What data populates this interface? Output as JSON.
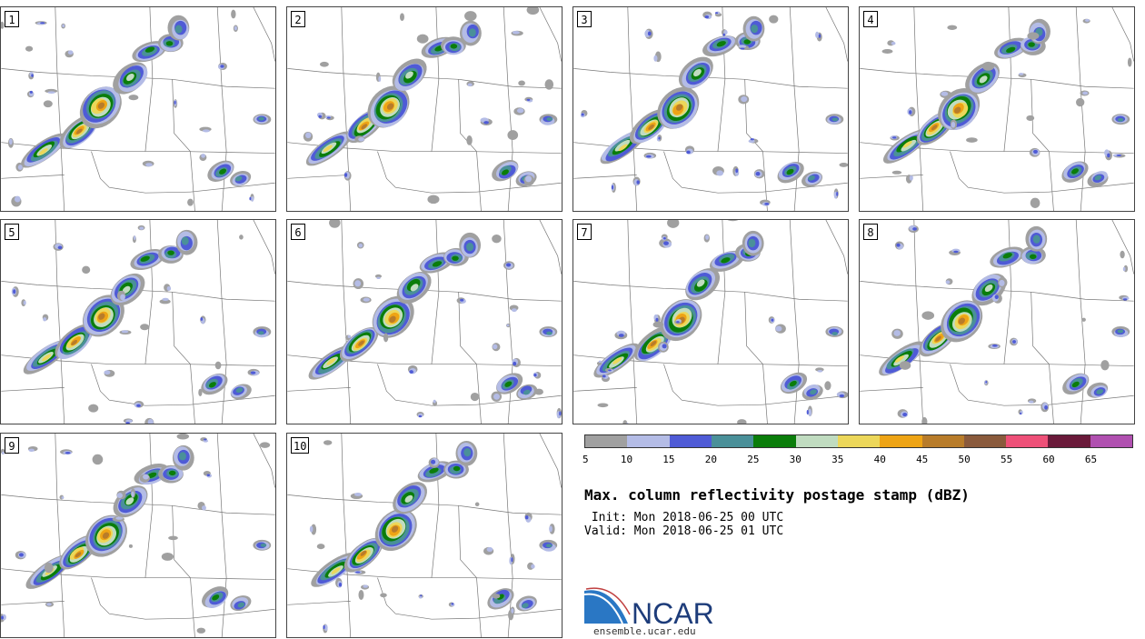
{
  "panels": [
    {
      "label": "1"
    },
    {
      "label": "2"
    },
    {
      "label": "3"
    },
    {
      "label": "4"
    },
    {
      "label": "5"
    },
    {
      "label": "6"
    },
    {
      "label": "7"
    },
    {
      "label": "8"
    },
    {
      "label": "9"
    },
    {
      "label": "10"
    }
  ],
  "colorbar": {
    "colors": [
      "#a0a0a0",
      "#b4bce6",
      "#4f5bd6",
      "#4a9099",
      "#0a7d0a",
      "#c0dcc0",
      "#ecd75a",
      "#eea415",
      "#b87c2a",
      "#8a5a3c",
      "#ee5078",
      "#6a1a3a",
      "#b050b0"
    ],
    "ticks": [
      "5",
      "10",
      "15",
      "20",
      "25",
      "30",
      "35",
      "40",
      "45",
      "50",
      "55",
      "60",
      "65"
    ]
  },
  "title": "Max. column reflectivity postage stamp (dBZ)",
  "init": " Init: Mon 2018-06-25 00 UTC",
  "valid": "Valid: Mon 2018-06-25 01 UTC",
  "logo": {
    "text": "NCAR",
    "url": "ensemble.ucar.edu"
  }
}
